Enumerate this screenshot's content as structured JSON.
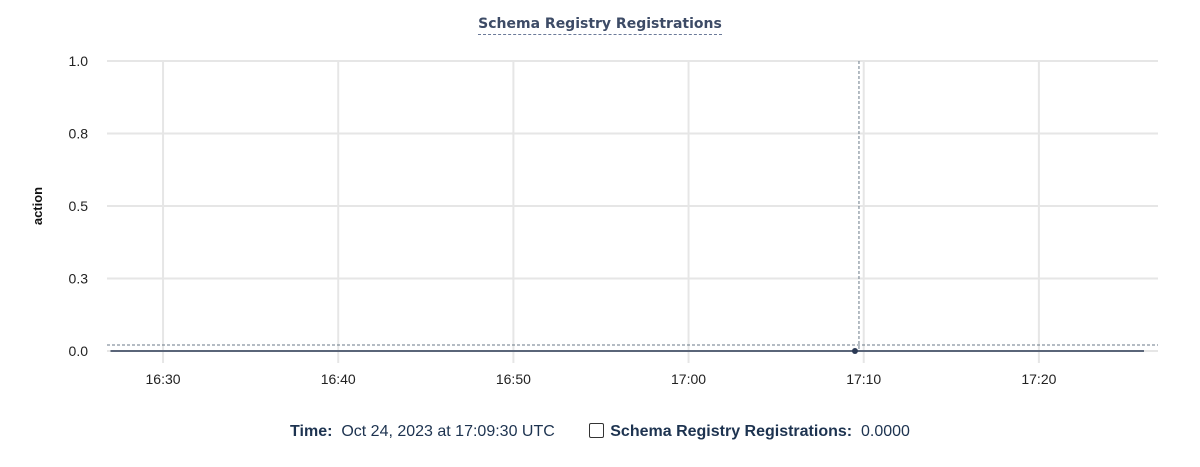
{
  "chart_data": {
    "type": "line",
    "title": "Schema Registry Registrations",
    "ylabel": "action",
    "xlabel": "",
    "ylim": [
      0,
      1
    ],
    "yticks": [
      0,
      0.25,
      0.5,
      0.75,
      1
    ],
    "ytick_labels": [
      "0.0",
      "0.3",
      "0.5",
      "0.8",
      "1.0"
    ],
    "xlim": [
      "16:26:48",
      "17:26:48"
    ],
    "xticks": [
      "16:30",
      "16:40",
      "16:50",
      "17:00",
      "17:10",
      "17:20"
    ],
    "grid": true,
    "series": [
      {
        "name": "Schema Registry Registrations",
        "color": "#2b3a55",
        "x": [
          "16:27:00",
          "16:30:00",
          "16:35:00",
          "16:40:00",
          "16:45:00",
          "16:50:00",
          "16:55:00",
          "17:00:00",
          "17:05:00",
          "17:10:00",
          "17:15:00",
          "17:20:00",
          "17:25:00",
          "17:26:00"
        ],
        "y": [
          0,
          0,
          0,
          0,
          0,
          0,
          0,
          0,
          0,
          0,
          0,
          0,
          0,
          0
        ]
      }
    ],
    "hover": {
      "x": "17:09:30",
      "y": 0
    }
  },
  "legend": {
    "time_label": "Time:",
    "time_value": "Oct 24, 2023 at 17:09:30 UTC",
    "series_label": "Schema Registry Registrations:",
    "series_value": "0.0000"
  }
}
